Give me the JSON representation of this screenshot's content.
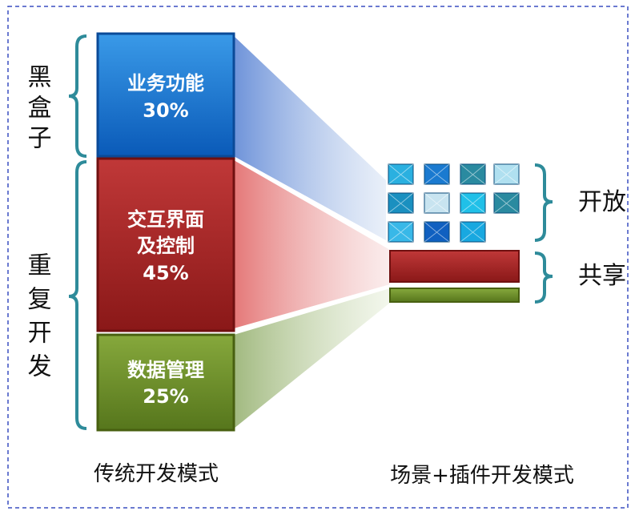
{
  "left": {
    "group_labels": [
      "黑盒子",
      "重复开发"
    ],
    "blocks": [
      {
        "lines": [
          "业务功能"
        ],
        "percent": "30%"
      },
      {
        "lines": [
          "交互界面",
          "及控制"
        ],
        "percent": "45%"
      },
      {
        "lines": [
          "数据管理"
        ],
        "percent": "25%"
      }
    ],
    "caption": "传统开发模式"
  },
  "right": {
    "group_labels": [
      "开放",
      "共享"
    ],
    "caption": "场景+插件开发模式"
  }
}
